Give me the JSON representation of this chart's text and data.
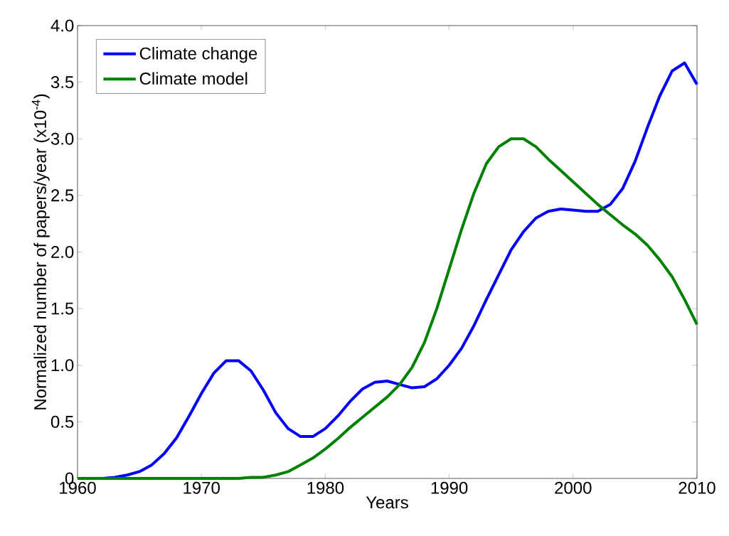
{
  "chart_data": {
    "type": "line",
    "xlabel": "Years",
    "ylabel": "Normalized number of papers/year (x10$^{-4}$)",
    "x": [
      1960,
      1961,
      1962,
      1963,
      1964,
      1965,
      1966,
      1967,
      1968,
      1969,
      1970,
      1971,
      1972,
      1973,
      1974,
      1975,
      1976,
      1977,
      1978,
      1979,
      1980,
      1981,
      1982,
      1983,
      1984,
      1985,
      1986,
      1987,
      1988,
      1989,
      1990,
      1991,
      1992,
      1993,
      1994,
      1995,
      1996,
      1997,
      1998,
      1999,
      2000,
      2001,
      2002,
      2003,
      2004,
      2005,
      2006,
      2007,
      2008,
      2009,
      2010
    ],
    "series": [
      {
        "name": "Climate change",
        "color": "#0000ff",
        "values": [
          0,
          0,
          0,
          0.01,
          0.03,
          0.06,
          0.12,
          0.22,
          0.36,
          0.55,
          0.75,
          0.93,
          1.04,
          1.04,
          0.95,
          0.78,
          0.58,
          0.44,
          0.37,
          0.37,
          0.44,
          0.55,
          0.68,
          0.79,
          0.85,
          0.86,
          0.83,
          0.8,
          0.81,
          0.88,
          1.0,
          1.15,
          1.35,
          1.58,
          1.8,
          2.02,
          2.18,
          2.3,
          2.36,
          2.38,
          2.37,
          2.36,
          2.36,
          2.42,
          2.56,
          2.8,
          3.1,
          3.38,
          3.6,
          3.67,
          3.48
        ]
      },
      {
        "name": "Climate model",
        "color": "#008000",
        "values": [
          0,
          0,
          0,
          0,
          0,
          0,
          0,
          0,
          0,
          0,
          0,
          0,
          0,
          0,
          0.01,
          0.01,
          0.03,
          0.06,
          0.12,
          0.18,
          0.26,
          0.35,
          0.45,
          0.54,
          0.63,
          0.72,
          0.83,
          0.98,
          1.2,
          1.5,
          1.85,
          2.2,
          2.52,
          2.78,
          2.93,
          3.0,
          3.0,
          2.93,
          2.82,
          2.72,
          2.62,
          2.52,
          2.42,
          2.33,
          2.24,
          2.16,
          2.06,
          1.93,
          1.78,
          1.58,
          1.36
        ]
      }
    ],
    "xlim": [
      1960,
      2010
    ],
    "ylim": [
      0,
      4
    ],
    "xticks": [
      1960,
      1970,
      1980,
      1990,
      2000,
      2010
    ],
    "yticks": [
      0,
      0.5,
      {
        "value": 1,
        "label": "1.0"
      },
      1.5,
      {
        "value": 2,
        "label": "2.0"
      },
      2.5,
      {
        "value": 3,
        "label": "3.0"
      },
      3.5,
      {
        "value": 4,
        "label": "4.0"
      }
    ],
    "legend": "top left"
  }
}
